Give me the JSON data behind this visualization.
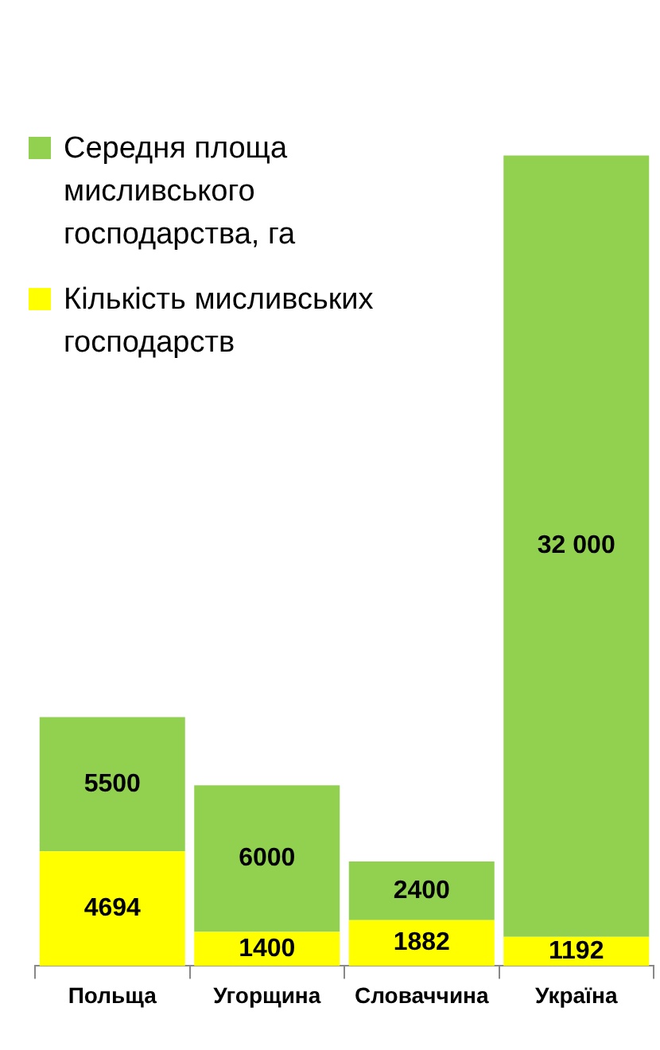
{
  "chart_data": {
    "type": "bar",
    "stacked": true,
    "categories": [
      "Польща",
      "Угорщина",
      "Словаччина",
      "Україна"
    ],
    "series": [
      {
        "name": "Кількість мисливських господарств",
        "color": "#ffff00",
        "values": [
          4694,
          1400,
          1882,
          1192
        ]
      },
      {
        "name": "Середня площа мисливського господарства, га",
        "color": "#92d050",
        "values": [
          5500,
          6000,
          2400,
          32000
        ]
      }
    ],
    "data_labels": true,
    "grid": false,
    "legend": "top left"
  }
}
